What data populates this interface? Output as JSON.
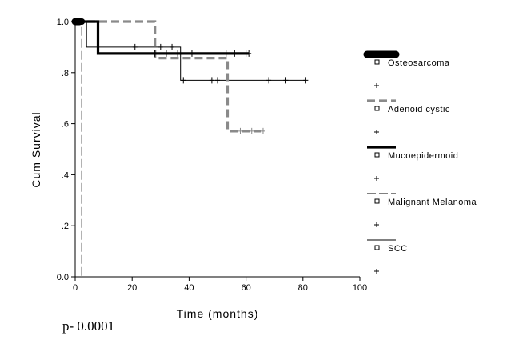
{
  "chart_data": {
    "type": "line",
    "ylabel": "Cum Survival",
    "xlabel": "Time (months)",
    "xlim": [
      0,
      100
    ],
    "ylim": [
      0,
      1
    ],
    "x_ticks": [
      0,
      20,
      40,
      60,
      80,
      100
    ],
    "x_tick_labels": [
      "0",
      "20",
      "40",
      "60",
      "80",
      "100"
    ],
    "y_ticks": [
      0,
      0.2,
      0.4,
      0.6,
      0.8,
      1.0
    ],
    "y_tick_labels": [
      "0.0",
      ".2",
      ".4",
      ".6",
      ".8",
      "1.0"
    ],
    "grid": false,
    "legend_position": "right",
    "series": [
      {
        "name": "Osteosarcoma",
        "style": "heavy-black",
        "color": "#000000",
        "steps": [
          [
            0,
            1.0
          ],
          [
            1.5,
            1.0
          ]
        ],
        "censored": []
      },
      {
        "name": "Adenoid cystic",
        "style": "dashed-gray",
        "color": "#8a8a8a",
        "steps": [
          [
            0,
            1.0
          ],
          [
            28,
            1.0
          ],
          [
            28,
            0.857
          ],
          [
            53.5,
            0.857
          ],
          [
            53.5,
            0.571
          ],
          [
            66,
            0.571
          ]
        ],
        "censored": [
          [
            58,
            0.571
          ],
          [
            62,
            0.571
          ],
          [
            66,
            0.571
          ]
        ]
      },
      {
        "name": "Mucoepidermoid",
        "style": "thick-black",
        "color": "#000000",
        "steps": [
          [
            0,
            1.0
          ],
          [
            8,
            1.0
          ],
          [
            8,
            0.875
          ],
          [
            61,
            0.875
          ]
        ],
        "censored": [
          [
            28,
            0.875
          ],
          [
            32,
            0.875
          ],
          [
            36,
            0.875
          ],
          [
            41,
            0.875
          ],
          [
            53,
            0.875
          ],
          [
            56,
            0.875
          ],
          [
            60,
            0.875
          ],
          [
            61,
            0.875
          ]
        ]
      },
      {
        "name": "Malignant Melanoma",
        "style": "long-dash-black",
        "color": "#000000",
        "steps": [
          [
            0,
            1.0
          ],
          [
            2.3,
            1.0
          ],
          [
            2.3,
            0.0
          ]
        ],
        "censored": []
      },
      {
        "name": "SCC",
        "style": "thin-black",
        "color": "#000000",
        "steps": [
          [
            0,
            1.0
          ],
          [
            4,
            1.0
          ],
          [
            4,
            0.9
          ],
          [
            37,
            0.9
          ],
          [
            37,
            0.77
          ],
          [
            81,
            0.77
          ]
        ],
        "censored": [
          [
            21,
            0.9
          ],
          [
            30,
            0.9
          ],
          [
            34,
            0.9
          ],
          [
            38,
            0.77
          ],
          [
            48,
            0.77
          ],
          [
            50,
            0.77
          ],
          [
            68,
            0.77
          ],
          [
            74,
            0.77
          ],
          [
            81,
            0.77
          ]
        ]
      }
    ],
    "annotation": "p- 0.0001"
  }
}
